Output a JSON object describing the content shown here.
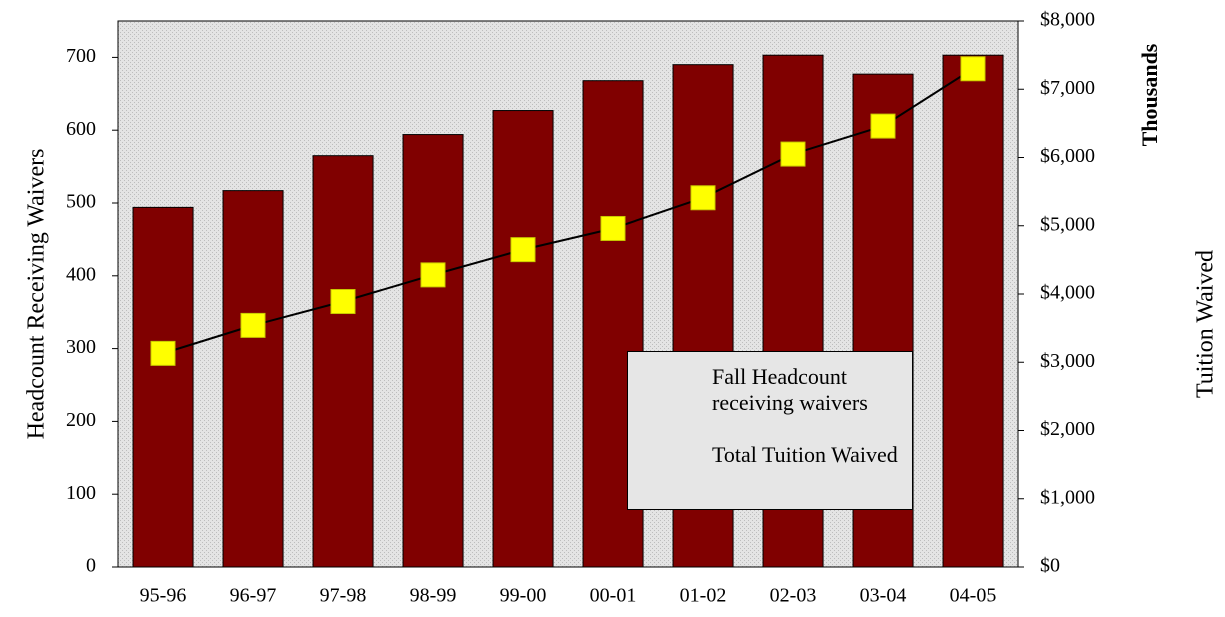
{
  "chart_data": {
    "type": "bar_line",
    "categories": [
      "95-96",
      "96-97",
      "97-98",
      "98-99",
      "99-00",
      "00-01",
      "01-02",
      "02-03",
      "03-04",
      "04-05"
    ],
    "series": [
      {
        "name": "Fall Headcount receiving waivers",
        "type": "bar",
        "color": "#800000",
        "values": [
          494,
          517,
          565,
          594,
          627,
          668,
          690,
          703,
          677,
          703
        ]
      },
      {
        "name": "Total Tuition Waived",
        "type": "line",
        "axis": "y2",
        "color": "#000000",
        "marker_color": "#ffff00",
        "values": [
          3130,
          3540,
          3890,
          4280,
          4650,
          4960,
          5410,
          6050,
          6460,
          7300
        ]
      }
    ],
    "y_label": "Headcount Receiving Waivers",
    "y2_label": "Tuition Waived",
    "y2_unit_label": "Thousands",
    "ylim": [
      0,
      750
    ],
    "yticks": [
      0,
      100,
      200,
      300,
      400,
      500,
      600,
      700
    ],
    "y2lim": [
      0,
      8000
    ],
    "y2ticks": [
      {
        "value": 0,
        "label": "$0"
      },
      {
        "value": 1000,
        "label": "$1,000"
      },
      {
        "value": 2000,
        "label": "$2,000"
      },
      {
        "value": 3000,
        "label": "$3,000"
      },
      {
        "value": 4000,
        "label": "$4,000"
      },
      {
        "value": 5000,
        "label": "$5,000"
      },
      {
        "value": 6000,
        "label": "$6,000"
      },
      {
        "value": 7000,
        "label": "$7,000"
      },
      {
        "value": 8000,
        "label": "$8,000"
      }
    ],
    "grid": false
  }
}
